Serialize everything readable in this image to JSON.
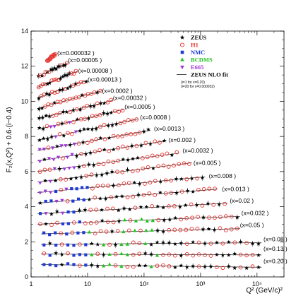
{
  "chart_data": {
    "type": "scatter",
    "title": "",
    "xlabel": "Q² (GeV/c)²",
    "ylabel": "F₂(x,Q²) + 0.6·(i−0.4)",
    "xscale": "log",
    "xlim": [
      1,
      30000
    ],
    "ylim": [
      0,
      14
    ],
    "x_tick_labels": [
      "1",
      "10",
      "10²",
      "10³",
      "10⁴"
    ],
    "x_tick_values": [
      1,
      10,
      100,
      1000,
      10000
    ],
    "y_tick_labels": [
      "0",
      "2",
      "4",
      "6",
      "8",
      "10",
      "12",
      "14"
    ],
    "y_tick_values": [
      0,
      2,
      4,
      6,
      8,
      10,
      12,
      14
    ],
    "legend": {
      "placement": "top-right",
      "entries": [
        {
          "name": "ZEUS",
          "color": "#000000",
          "marker": "star"
        },
        {
          "name": "H1",
          "color": "#e8302c",
          "marker": "open-circle"
        },
        {
          "name": "NMC",
          "color": "#1f3ad6",
          "marker": "square"
        },
        {
          "name": "BCDMS",
          "color": "#22c31e",
          "marker": "triangle-up"
        },
        {
          "name": "E665",
          "color": "#a035d8",
          "marker": "triangle-down"
        },
        {
          "name": "ZEUS NLO fit",
          "color": "#000000",
          "marker": "line"
        }
      ],
      "notes": [
        "(i=1 for x=0.20)",
        "(i=20 for x=0.000032)"
      ]
    },
    "bins": [
      {
        "label": "(x=0.000032 )",
        "x": 3.2e-05,
        "q2_range": [
          1.9,
          2.7
        ],
        "y": [
          12.3,
          12.7
        ],
        "exp": [
          "H1"
        ],
        "label_q2": 2.9,
        "label_y": 12.75
      },
      {
        "label": "(x=0.00005 )",
        "x": 5e-05,
        "q2_range": [
          1.3,
          4.5
        ],
        "y": [
          11.4,
          12.2
        ],
        "exp": [
          "H1",
          "ZEUS"
        ],
        "label_q2": 4.5,
        "label_y": 12.35
      },
      {
        "label": "(x=0.00008 )",
        "x": 8e-05,
        "q2_range": [
          1.3,
          6.5
        ],
        "y": [
          10.8,
          11.7
        ],
        "exp": [
          "H1",
          "ZEUS"
        ],
        "label_q2": 6.8,
        "label_y": 11.75
      },
      {
        "label": "(x=0.00013 )",
        "x": 0.00013,
        "q2_range": [
          1.3,
          10
        ],
        "y": [
          10.2,
          11.2
        ],
        "exp": [
          "H1",
          "ZEUS"
        ],
        "label_q2": 10,
        "label_y": 11.25
      },
      {
        "label": "(x=0.0002 )",
        "x": 0.0002,
        "q2_range": [
          1.3,
          18
        ],
        "y": [
          9.6,
          10.6
        ],
        "exp": [
          "H1",
          "ZEUS"
        ],
        "label_q2": 18,
        "label_y": 10.6
      },
      {
        "label": "(x=0.00032 )",
        "x": 0.00032,
        "q2_range": [
          1.3,
          28
        ],
        "y": [
          9.0,
          10.05
        ],
        "exp": [
          "H1",
          "ZEUS"
        ],
        "label_q2": 28,
        "label_y": 10.2
      },
      {
        "label": "(x=0.0005 )",
        "x": 0.0005,
        "q2_range": [
          1.3,
          45
        ],
        "y": [
          8.4,
          9.55
        ],
        "exp": [
          "H1",
          "ZEUS",
          "E665"
        ],
        "label_q2": 45,
        "label_y": 9.7
      },
      {
        "label": "(x=0.0008 )",
        "x": 0.0008,
        "q2_range": [
          1.3,
          80
        ],
        "y": [
          7.8,
          9.0
        ],
        "exp": [
          "H1",
          "ZEUS",
          "E665"
        ],
        "label_q2": 85,
        "label_y": 9.1
      },
      {
        "label": "(x=0.0013 )",
        "x": 0.0013,
        "q2_range": [
          1.3,
          130
        ],
        "y": [
          7.2,
          8.35
        ],
        "exp": [
          "H1",
          "ZEUS",
          "E665"
        ],
        "label_q2": 150,
        "label_y": 8.45
      },
      {
        "label": "(x=0.002 )",
        "x": 0.002,
        "q2_range": [
          1.3,
          250
        ],
        "y": [
          6.6,
          7.75
        ],
        "exp": [
          "H1",
          "ZEUS",
          "E665"
        ],
        "label_q2": 270,
        "label_y": 7.8
      },
      {
        "label": "(x=0.0032 )",
        "x": 0.0032,
        "q2_range": [
          1.3,
          420
        ],
        "y": [
          6.0,
          7.05
        ],
        "exp": [
          "H1",
          "ZEUS",
          "E665"
        ],
        "label_q2": 480,
        "label_y": 7.2
      },
      {
        "label": "(x=0.005 )",
        "x": 0.005,
        "q2_range": [
          1.3,
          700
        ],
        "y": [
          5.4,
          6.5
        ],
        "exp": [
          "H1",
          "ZEUS",
          "E665"
        ],
        "label_q2": 750,
        "label_y": 6.5
      },
      {
        "label": "(x=0.008 )",
        "x": 0.008,
        "q2_range": [
          1.3,
          1200
        ],
        "y": [
          4.8,
          5.7
        ],
        "exp": [
          "H1",
          "ZEUS",
          "NMC",
          "E665"
        ],
        "label_q2": 1400,
        "label_y": 5.75
      },
      {
        "label": "(x=0.013 )",
        "x": 0.013,
        "q2_range": [
          1.3,
          2000
        ],
        "y": [
          4.2,
          5.0
        ],
        "exp": [
          "H1",
          "ZEUS",
          "NMC",
          "E665"
        ],
        "label_q2": 2400,
        "label_y": 5.0
      },
      {
        "label": "(x=0.02 )",
        "x": 0.02,
        "q2_range": [
          1.3,
          3000
        ],
        "y": [
          3.6,
          4.2
        ],
        "exp": [
          "H1",
          "ZEUS",
          "NMC",
          "E665"
        ],
        "label_q2": 3300,
        "label_y": 4.35
      },
      {
        "label": "(x=0.032 )",
        "x": 0.032,
        "q2_range": [
          1.3,
          5000
        ],
        "y": [
          3.0,
          3.45
        ],
        "exp": [
          "H1",
          "ZEUS",
          "NMC",
          "BCDMS"
        ],
        "label_q2": 5300,
        "label_y": 3.65
      },
      {
        "label": "(x=0.05 )",
        "x": 0.05,
        "q2_range": [
          1.5,
          5000
        ],
        "y": [
          2.45,
          2.75
        ],
        "exp": [
          "H1",
          "ZEUS",
          "NMC",
          "BCDMS"
        ],
        "label_q2": 5000,
        "label_y": 2.95
      },
      {
        "label": "(x=0.08 )",
        "x": 0.08,
        "q2_range": [
          1.5,
          12000
        ],
        "y": [
          1.85,
          1.95
        ],
        "exp": [
          "H1",
          "ZEUS",
          "NMC",
          "BCDMS"
        ],
        "label_q2": 13000,
        "label_y": 2.15
      },
      {
        "label": "(x=0.13 )",
        "x": 0.13,
        "q2_range": [
          1.5,
          12000
        ],
        "y": [
          1.3,
          1.25
        ],
        "exp": [
          "H1",
          "ZEUS",
          "NMC",
          "BCDMS"
        ],
        "label_q2": 13000,
        "label_y": 1.6
      },
      {
        "label": "(x=0.20 )",
        "x": 0.2,
        "q2_range": [
          1.5,
          12000
        ],
        "y": [
          0.7,
          0.55
        ],
        "exp": [
          "H1",
          "ZEUS",
          "NMC",
          "BCDMS"
        ],
        "label_q2": 13000,
        "label_y": 0.9
      }
    ]
  },
  "colors": {
    "ZEUS": "#000000",
    "H1": "#e8302c",
    "NMC": "#1f3ad6",
    "BCDMS": "#22c31e",
    "E665": "#a035d8"
  }
}
